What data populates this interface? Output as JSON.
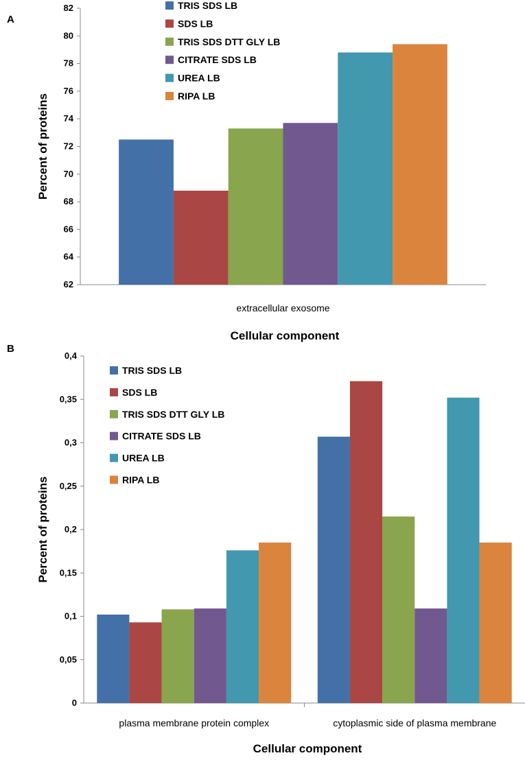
{
  "chart_data": [
    {
      "panel": "A",
      "type": "bar",
      "categories": [
        "extracellular exosome"
      ],
      "xlabel": "Cellular component",
      "ylabel": "Percent of proteins",
      "ylim": [
        62,
        82
      ],
      "yticks": [
        "62",
        "64",
        "66",
        "68",
        "70",
        "72",
        "74",
        "76",
        "78",
        "80",
        "82"
      ],
      "legend_position": "top-right",
      "series": [
        {
          "name": "TRIS SDS LB",
          "color": "#4470A8",
          "values": [
            72.5
          ]
        },
        {
          "name": "SDS LB",
          "color": "#AA4643",
          "values": [
            68.8
          ]
        },
        {
          "name": "TRIS SDS DTT GLY LB",
          "color": "#89A54E",
          "values": [
            73.3
          ]
        },
        {
          "name": "CITRATE SDS LB",
          "color": "#71588F",
          "values": [
            73.7
          ]
        },
        {
          "name": "UREA LB",
          "color": "#4198AF",
          "values": [
            78.8
          ]
        },
        {
          "name": "RIPA LB",
          "color": "#DB843D",
          "values": [
            79.4
          ]
        }
      ]
    },
    {
      "panel": "B",
      "type": "bar",
      "categories": [
        "plasma membrane protein complex",
        "cytoplasmic side of plasma membrane"
      ],
      "xlabel": "Cellular component",
      "ylabel": "Percent of proteins",
      "ylim": [
        0,
        0.4
      ],
      "yticks": [
        "0",
        "0,05",
        "0,1",
        "0,15",
        "0,2",
        "0,25",
        "0,3",
        "0,35",
        "0,4"
      ],
      "legend_position": "top-left",
      "series": [
        {
          "name": "TRIS SDS LB",
          "color": "#4470A8",
          "values": [
            0.102,
            0.307
          ]
        },
        {
          "name": "SDS LB",
          "color": "#AA4643",
          "values": [
            0.093,
            0.371
          ]
        },
        {
          "name": "TRIS SDS DTT GLY LB",
          "color": "#89A54E",
          "values": [
            0.108,
            0.215
          ]
        },
        {
          "name": "CITRATE SDS LB",
          "color": "#71588F",
          "values": [
            0.109,
            0.109
          ]
        },
        {
          "name": "UREA LB",
          "color": "#4198AF",
          "values": [
            0.176,
            0.352
          ]
        },
        {
          "name": "RIPA LB",
          "color": "#DB843D",
          "values": [
            0.185,
            0.185
          ]
        }
      ]
    }
  ]
}
